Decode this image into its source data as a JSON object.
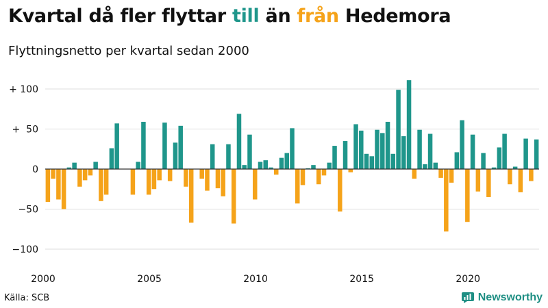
{
  "title": {
    "part1": "Kvartal då fler flyttar ",
    "till": "till",
    "part2": " än ",
    "fran": "från",
    "part3": " Hedemora"
  },
  "subtitle": "Flyttningsnetto per kvartal sedan 2000",
  "source": "Källa: SCB",
  "brand": "Newsworthy",
  "colors": {
    "positive": "#1f968b",
    "negative": "#f5a31a",
    "axis": "#333333",
    "grid": "#dddddd",
    "text": "#111111"
  },
  "chart_data": {
    "type": "bar",
    "title": "Kvartal då fler flyttar till än från Hedemora",
    "subtitle": "Flyttningsnetto per kvartal sedan 2000",
    "ylim": [
      -110,
      115
    ],
    "yticks": [
      {
        "value": 100,
        "label": "+ 100"
      },
      {
        "value": 50,
        "label": "+  50"
      },
      {
        "value": 0,
        "label": "0"
      },
      {
        "value": -50,
        "label": "−50"
      },
      {
        "value": -100,
        "label": "−100"
      }
    ],
    "xticks": [
      "2000",
      "2005",
      "2010",
      "2015",
      "2020"
    ],
    "grid": true,
    "start_year": 2000,
    "values": [
      -41,
      -12,
      -38,
      -50,
      2,
      8,
      -22,
      -14,
      -8,
      9,
      -40,
      -32,
      26,
      57,
      0,
      0,
      -32,
      9,
      59,
      -32,
      -25,
      -14,
      58,
      -15,
      33,
      54,
      -22,
      -67,
      0,
      -12,
      -27,
      31,
      -24,
      -34,
      31,
      -68,
      69,
      5,
      43,
      -38,
      9,
      11,
      2,
      -7,
      14,
      20,
      51,
      -43,
      -20,
      1,
      5,
      -19,
      -8,
      8,
      29,
      -53,
      35,
      -4,
      56,
      48,
      19,
      16,
      49,
      45,
      59,
      19,
      99,
      41,
      111,
      -12,
      49,
      6,
      44,
      8,
      -11,
      -78,
      -17,
      21,
      61,
      -66,
      43,
      -28,
      20,
      -35,
      2,
      27,
      44,
      -19,
      3,
      -29,
      38,
      -15,
      37
    ]
  }
}
